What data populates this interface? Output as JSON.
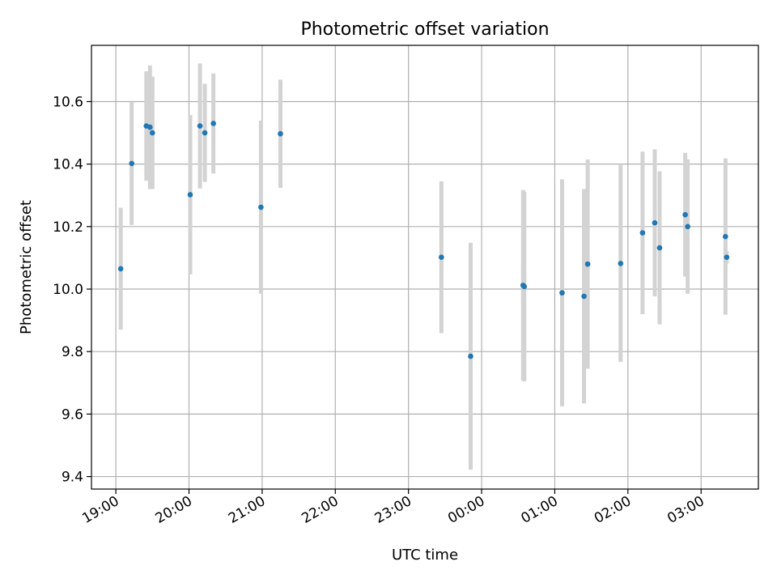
{
  "chart_data": {
    "type": "scatter",
    "title": "Photometric offset variation",
    "xlabel": "UTC time",
    "ylabel": "Photometric offset",
    "grid": true,
    "colors": {
      "point": "#1f77b4",
      "errorbar": "#d3d3d3",
      "grid": "#b0b0b0"
    },
    "xlim": [
      "18:40",
      "03:47"
    ],
    "ylim": [
      9.36,
      10.78
    ],
    "yticks": [
      9.4,
      9.6,
      9.8,
      10.0,
      10.2,
      10.4,
      10.6
    ],
    "xticks": [
      "19:00",
      "20:00",
      "21:00",
      "22:00",
      "23:00",
      "00:00",
      "01:00",
      "02:00",
      "03:00"
    ],
    "points": [
      {
        "x": "19:04",
        "y": 10.065,
        "yerr": 0.195
      },
      {
        "x": "19:13",
        "y": 10.402,
        "yerr": 0.197
      },
      {
        "x": "19:25",
        "y": 10.522,
        "yerr": 0.175
      },
      {
        "x": "19:28",
        "y": 10.518,
        "yerr": 0.198
      },
      {
        "x": "19:30",
        "y": 10.5,
        "yerr": 0.18
      },
      {
        "x": "20:01",
        "y": 10.302,
        "yerr": 0.255
      },
      {
        "x": "20:09",
        "y": 10.522,
        "yerr": 0.2
      },
      {
        "x": "20:13",
        "y": 10.5,
        "yerr": 0.157
      },
      {
        "x": "20:20",
        "y": 10.53,
        "yerr": 0.16
      },
      {
        "x": "20:59",
        "y": 10.262,
        "yerr": 0.277
      },
      {
        "x": "21:15",
        "y": 10.497,
        "yerr": 0.173
      },
      {
        "x": "23:27",
        "y": 10.102,
        "yerr": 0.243
      },
      {
        "x": "23:51",
        "y": 9.785,
        "yerr": 0.363
      },
      {
        "x": "00:34",
        "y": 10.012,
        "yerr": 0.305
      },
      {
        "x": "00:35",
        "y": 10.008,
        "yerr": 0.303
      },
      {
        "x": "01:06",
        "y": 9.988,
        "yerr": 0.363
      },
      {
        "x": "01:24",
        "y": 9.977,
        "yerr": 0.343
      },
      {
        "x": "01:27",
        "y": 10.08,
        "yerr": 0.335
      },
      {
        "x": "01:54",
        "y": 10.082,
        "yerr": 0.315
      },
      {
        "x": "02:12",
        "y": 10.18,
        "yerr": 0.26
      },
      {
        "x": "02:22",
        "y": 10.212,
        "yerr": 0.235
      },
      {
        "x": "02:26",
        "y": 10.132,
        "yerr": 0.245
      },
      {
        "x": "02:47",
        "y": 10.238,
        "yerr": 0.198
      },
      {
        "x": "02:49",
        "y": 10.2,
        "yerr": 0.215
      },
      {
        "x": "03:20",
        "y": 10.168,
        "yerr": 0.25
      },
      {
        "x": "03:21",
        "y": 10.102,
        "yerr": 0.02
      }
    ]
  }
}
